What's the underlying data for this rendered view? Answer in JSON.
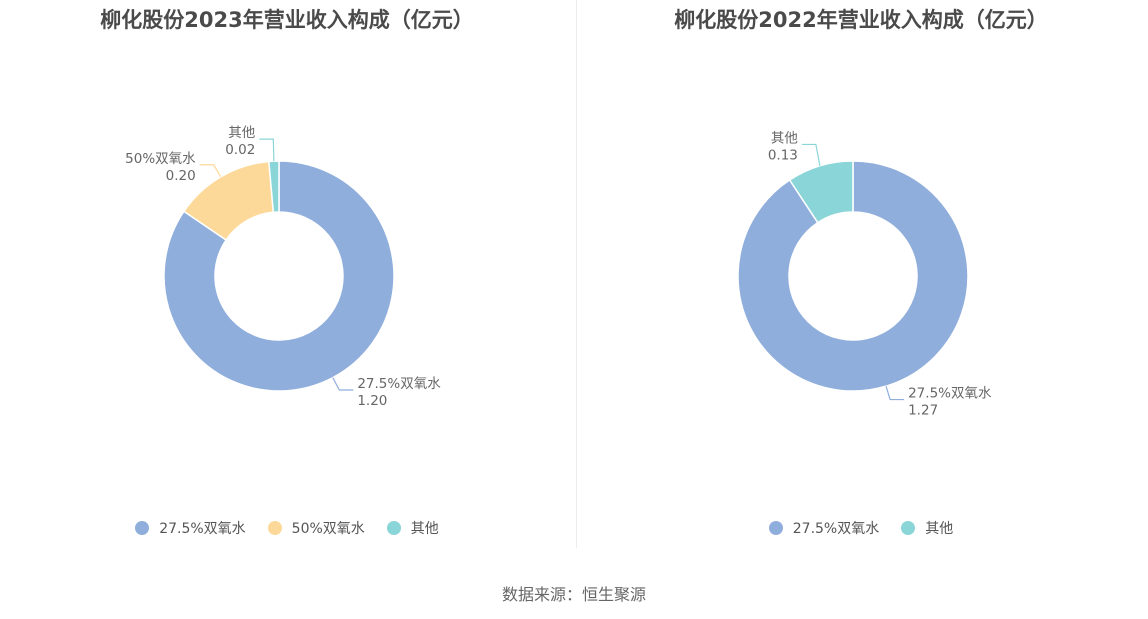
{
  "chart_data": [
    {
      "type": "pie",
      "variant": "donut",
      "title": "柳化股份2023年营业收入构成（亿元）",
      "categories": [
        "27.5%双氧水",
        "50%双氧水",
        "其他"
      ],
      "values": [
        1.2,
        0.2,
        0.02
      ],
      "value_labels": [
        "1.20",
        "0.20",
        "0.02"
      ],
      "colors": [
        "#8FAEDC",
        "#FDD999",
        "#8AD5D8"
      ],
      "legend_position": "bottom"
    },
    {
      "type": "pie",
      "variant": "donut",
      "title": "柳化股份2022年营业收入构成（亿元）",
      "categories": [
        "27.5%双氧水",
        "其他"
      ],
      "values": [
        1.27,
        0.13
      ],
      "value_labels": [
        "1.27",
        "0.13"
      ],
      "colors": [
        "#8FAEDC",
        "#8AD5D8"
      ],
      "legend_position": "bottom"
    }
  ],
  "source_text": "数据来源：恒生聚源"
}
